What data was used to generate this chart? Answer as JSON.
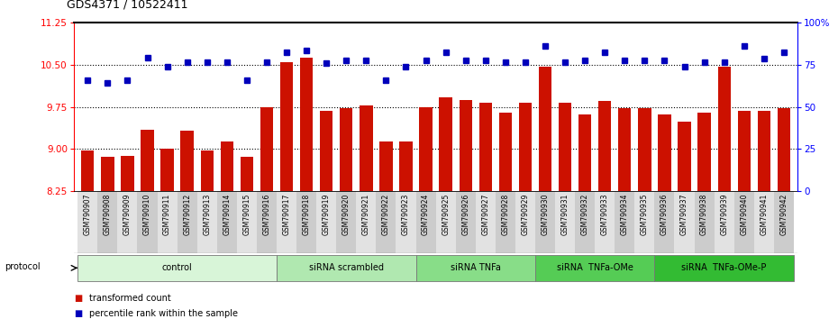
{
  "title": "GDS4371 / 10522411",
  "samples": [
    "GSM790907",
    "GSM790908",
    "GSM790909",
    "GSM790910",
    "GSM790911",
    "GSM790912",
    "GSM790913",
    "GSM790914",
    "GSM790915",
    "GSM790916",
    "GSM790917",
    "GSM790918",
    "GSM790919",
    "GSM790920",
    "GSM790921",
    "GSM790922",
    "GSM790923",
    "GSM790924",
    "GSM790925",
    "GSM790926",
    "GSM790927",
    "GSM790928",
    "GSM790929",
    "GSM790930",
    "GSM790931",
    "GSM790932",
    "GSM790933",
    "GSM790934",
    "GSM790935",
    "GSM790936",
    "GSM790937",
    "GSM790938",
    "GSM790939",
    "GSM790940",
    "GSM790941",
    "GSM790942"
  ],
  "bar_values": [
    8.97,
    8.87,
    8.88,
    9.35,
    9.0,
    9.33,
    8.97,
    9.13,
    8.87,
    9.75,
    10.55,
    10.63,
    9.68,
    9.72,
    9.78,
    9.13,
    9.13,
    9.75,
    9.92,
    9.87,
    9.82,
    9.65,
    9.82,
    10.47,
    9.83,
    9.62,
    9.85,
    9.72,
    9.72,
    9.62,
    9.48,
    9.65,
    10.47,
    9.68,
    9.68,
    9.72
  ],
  "dot_values": [
    10.22,
    10.17,
    10.22,
    10.62,
    10.47,
    10.55,
    10.55,
    10.55,
    10.22,
    10.55,
    10.72,
    10.75,
    10.53,
    10.57,
    10.58,
    10.22,
    10.47,
    10.57,
    10.72,
    10.58,
    10.57,
    10.55,
    10.55,
    10.83,
    10.55,
    10.57,
    10.72,
    10.58,
    10.57,
    10.57,
    10.47,
    10.55,
    10.55,
    10.83,
    10.6,
    10.72
  ],
  "groups": [
    {
      "label": "control",
      "start": 0,
      "end": 10,
      "color": "#d8f5d8"
    },
    {
      "label": "siRNA scrambled",
      "start": 10,
      "end": 17,
      "color": "#b0e8b0"
    },
    {
      "label": "siRNA TNFa",
      "start": 17,
      "end": 23,
      "color": "#88dd88"
    },
    {
      "label": "siRNA  TNFa-OMe",
      "start": 23,
      "end": 29,
      "color": "#55cc55"
    },
    {
      "label": "siRNA  TNFa-OMe-P",
      "start": 29,
      "end": 36,
      "color": "#33bb33"
    }
  ],
  "ylim_left": [
    8.25,
    11.25
  ],
  "ylim_right": [
    0,
    100
  ],
  "yticks_left": [
    8.25,
    9.0,
    9.75,
    10.5,
    11.25
  ],
  "yticks_right": [
    0,
    25,
    50,
    75,
    100
  ],
  "bar_color": "#cc1100",
  "dot_color": "#0000bb",
  "plot_bg": "#ffffff"
}
